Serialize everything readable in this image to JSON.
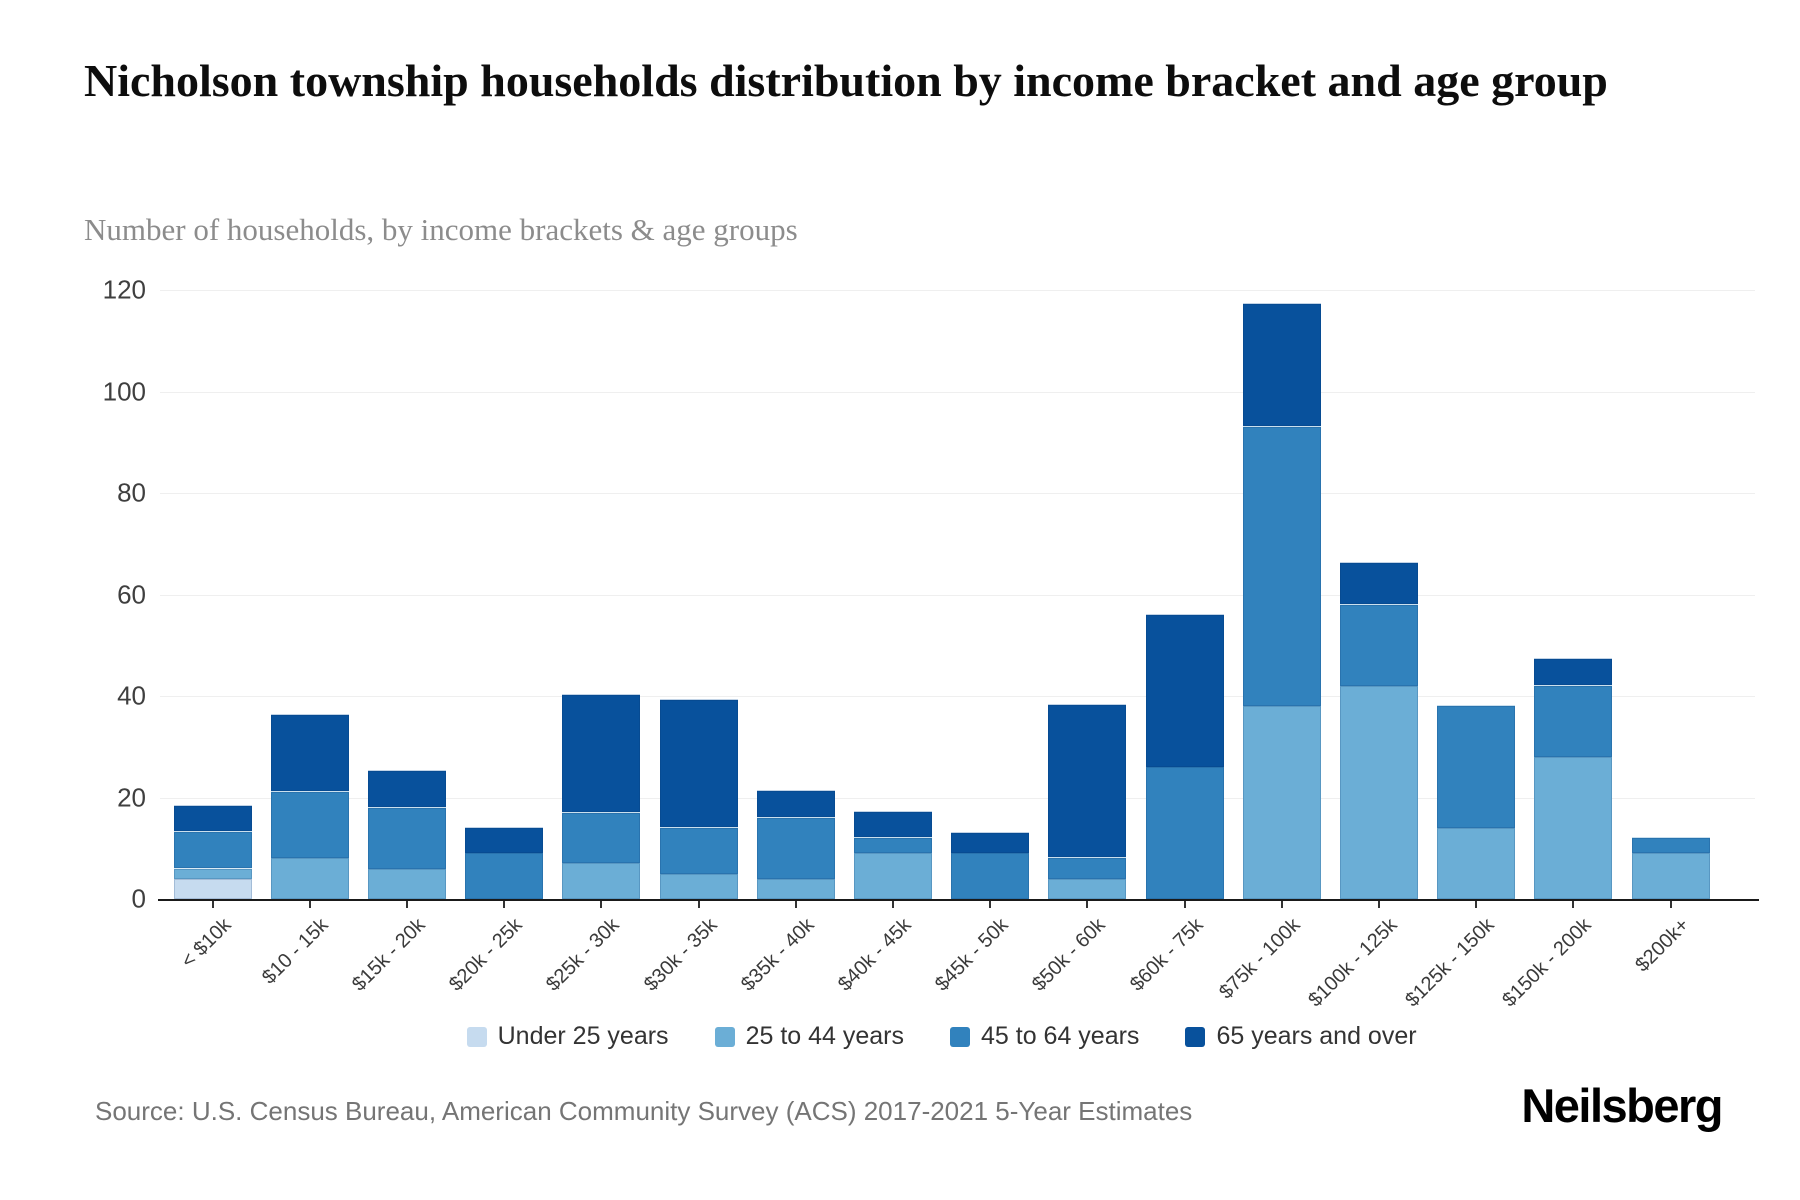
{
  "header": {
    "title": "Nicholson township households distribution by income bracket and age group",
    "subtitle": "Number of households, by income brackets & age groups"
  },
  "chart_data": {
    "type": "bar",
    "stacked": true,
    "grid": true,
    "legend_position": "bottom",
    "ylim": [
      0,
      120
    ],
    "yticks": [
      0,
      20,
      40,
      60,
      80,
      100,
      120
    ],
    "categories": [
      "< $10k",
      "$10 - 15k",
      "$15k - 20k",
      "$20k - 25k",
      "$25k - 30k",
      "$30k - 35k",
      "$35k - 40k",
      "$40k - 45k",
      "$45k - 50k",
      "$50k - 60k",
      "$60k - 75k",
      "$75k - 100k",
      "$100k - 125k",
      "$125k - 150k",
      "$150k - 200k",
      "$200k+"
    ],
    "series": [
      {
        "name": "Under 25 years",
        "color": "#c6dbef",
        "values": [
          4,
          0,
          0,
          0,
          0,
          0,
          0,
          0,
          0,
          0,
          0,
          0,
          0,
          0,
          0,
          0
        ]
      },
      {
        "name": "25 to 44 years",
        "color": "#6baed6",
        "values": [
          2,
          8,
          6,
          0,
          7,
          5,
          4,
          9,
          0,
          4,
          0,
          38,
          42,
          14,
          28,
          9
        ]
      },
      {
        "name": "45 to 64 years",
        "color": "#3182bd",
        "values": [
          7,
          13,
          12,
          9,
          10,
          9,
          12,
          3,
          9,
          4,
          26,
          55,
          16,
          24,
          14,
          3
        ]
      },
      {
        "name": "65 years and over",
        "color": "#08519c",
        "values": [
          5,
          15,
          7,
          5,
          23,
          25,
          5,
          5,
          4,
          30,
          30,
          24,
          8,
          0,
          5,
          0
        ]
      }
    ],
    "totals": [
      18,
      36,
      25,
      14,
      40,
      39,
      21,
      17,
      13,
      38,
      56,
      117,
      66,
      38,
      47,
      12
    ]
  },
  "footer": {
    "source": "Source: U.S. Census Bureau, American Community Survey (ACS) 2017-2021 5-Year Estimates",
    "brand": "Neilsberg"
  }
}
